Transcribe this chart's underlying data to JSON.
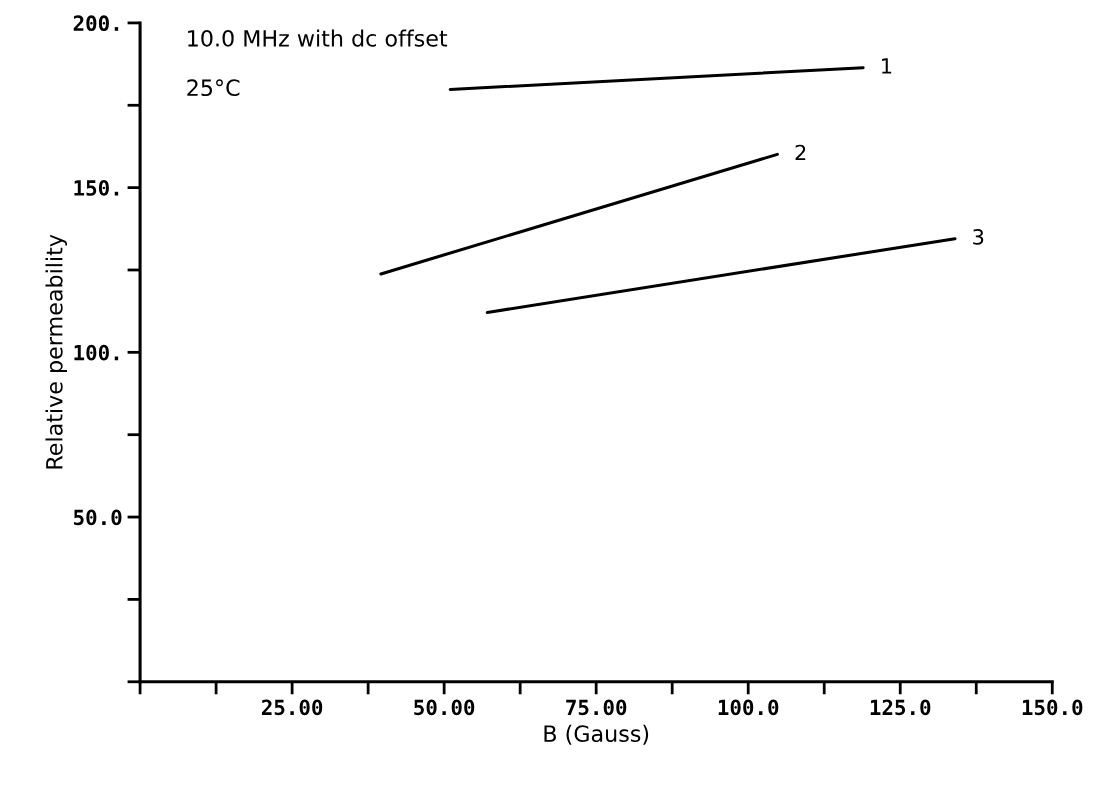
{
  "chart_data": {
    "type": "line",
    "xlabel": "B (Gauss)",
    "ylabel": "Relative permeability",
    "annotations": [
      "10.0 MHz with dc offset",
      "25°C"
    ],
    "series": [
      {
        "name": "1",
        "color": "#000000",
        "x": [
          51.0,
          118.9
        ],
        "values": [
          179.8,
          186.4
        ]
      },
      {
        "name": "2",
        "color": "#000000",
        "x": [
          39.6,
          104.8
        ],
        "values": [
          123.8,
          160.1
        ]
      },
      {
        "name": "3",
        "color": "#000000",
        "x": [
          57.1,
          134.0
        ],
        "values": [
          112.1,
          134.5
        ]
      }
    ],
    "xlim": [
      0,
      150
    ],
    "ylim": [
      0,
      200
    ],
    "xticks": [
      {
        "value": 0,
        "label": null
      },
      {
        "value": 12.5,
        "label": null
      },
      {
        "value": 25,
        "label": "25.00"
      },
      {
        "value": 37.5,
        "label": null
      },
      {
        "value": 50,
        "label": "50.00"
      },
      {
        "value": 62.5,
        "label": null
      },
      {
        "value": 75,
        "label": "75.00"
      },
      {
        "value": 87.5,
        "label": null
      },
      {
        "value": 100,
        "label": "100.0"
      },
      {
        "value": 112.5,
        "label": null
      },
      {
        "value": 125,
        "label": "125.0"
      },
      {
        "value": 137.5,
        "label": null
      },
      {
        "value": 150,
        "label": "150.0"
      }
    ],
    "yticks": [
      {
        "value": 0,
        "label": null
      },
      {
        "value": 25,
        "label": null
      },
      {
        "value": 50,
        "label": "50.0"
      },
      {
        "value": 75,
        "label": null
      },
      {
        "value": 100,
        "label": "100."
      },
      {
        "value": 125,
        "label": null
      },
      {
        "value": 150,
        "label": "150."
      },
      {
        "value": 175,
        "label": null
      },
      {
        "value": 200,
        "label": "200."
      }
    ],
    "grid": false,
    "legend": false,
    "marker": "none",
    "line_style": "solid"
  }
}
